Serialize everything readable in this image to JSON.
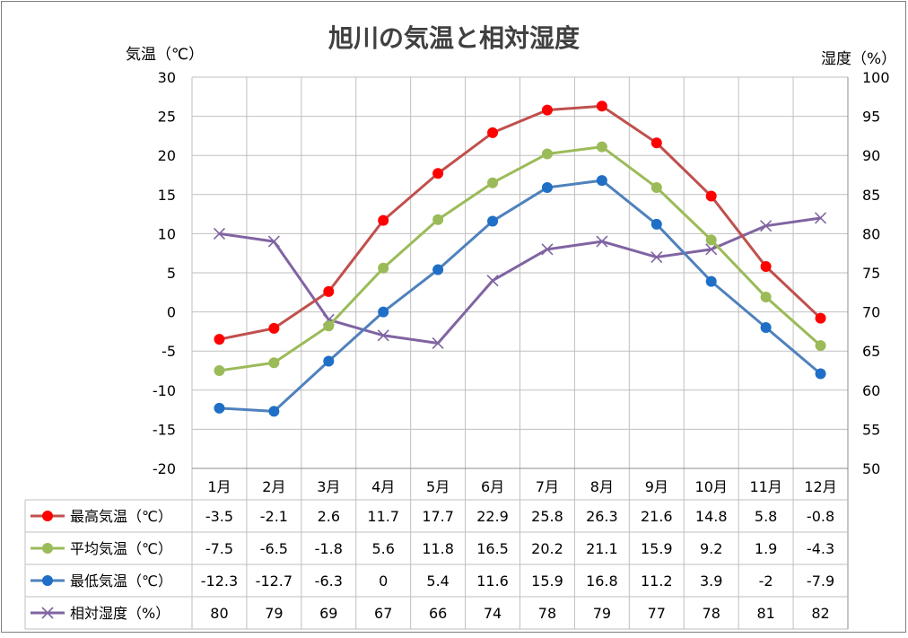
{
  "chart_data": {
    "type": "line",
    "title": "旭川の気温と相対湿度",
    "y_left_label": "気温（℃）",
    "y_right_label": "湿度（%）",
    "y_left": {
      "min": -20,
      "max": 30,
      "step": 5
    },
    "y_right": {
      "min": 50,
      "max": 100,
      "step": 5
    },
    "categories": [
      "1月",
      "2月",
      "3月",
      "4月",
      "5月",
      "6月",
      "7月",
      "8月",
      "9月",
      "10月",
      "11月",
      "12月"
    ],
    "grid": true,
    "legend": "data-table",
    "series": [
      {
        "name": "最高気温（℃）",
        "axis": "left",
        "color": "#c0504d",
        "marker_color": "#ff0000",
        "marker": "circle",
        "values": [
          -3.5,
          -2.1,
          2.6,
          11.7,
          17.7,
          22.9,
          25.8,
          26.3,
          21.6,
          14.8,
          5.8,
          -0.8
        ]
      },
      {
        "name": "平均気温（℃）",
        "axis": "left",
        "color": "#9bbb59",
        "marker_color": "#9bbb59",
        "marker": "circle",
        "values": [
          -7.5,
          -6.5,
          -1.8,
          5.6,
          11.8,
          16.5,
          20.2,
          21.1,
          15.9,
          9.2,
          1.9,
          -4.3
        ]
      },
      {
        "name": "最低気温（℃）",
        "axis": "left",
        "color": "#4f81bd",
        "marker_color": "#1f6fc6",
        "marker": "circle",
        "values": [
          -12.3,
          -12.7,
          -6.3,
          0,
          5.4,
          11.6,
          15.9,
          16.8,
          11.2,
          3.9,
          -2,
          -7.9
        ]
      },
      {
        "name": "相対湿度（%）",
        "axis": "right",
        "color": "#8064a2",
        "marker_color": "#8064a2",
        "marker": "x",
        "values": [
          80,
          79,
          69,
          67,
          66,
          74,
          78,
          79,
          77,
          78,
          81,
          82
        ]
      }
    ]
  }
}
